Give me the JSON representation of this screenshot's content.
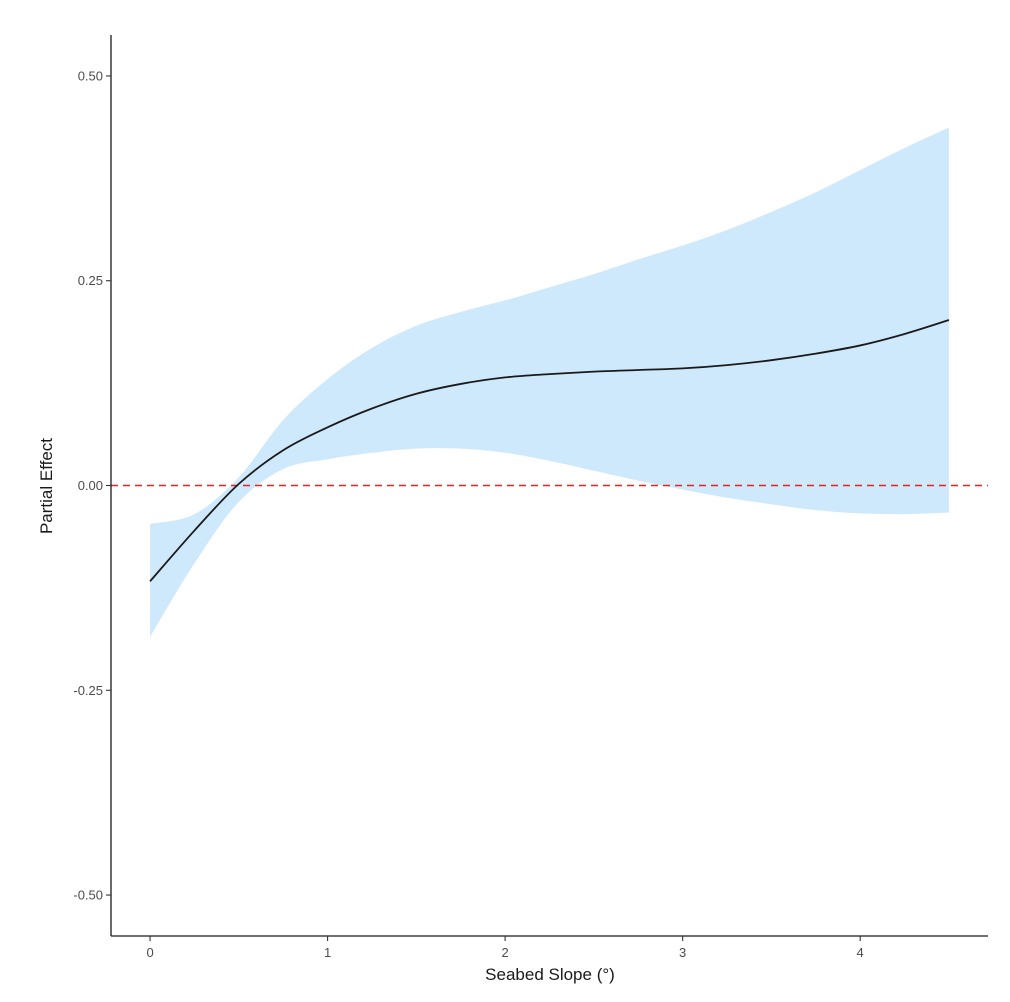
{
  "chart_data": {
    "type": "line",
    "title": "",
    "xlabel": "Seabed Slope (°)",
    "ylabel": "Partial Effect",
    "xlim": [
      -0.22,
      4.72
    ],
    "ylim": [
      -0.55,
      0.55
    ],
    "x_ticks": [
      {
        "value": 0,
        "label": "0"
      },
      {
        "value": 1,
        "label": "1"
      },
      {
        "value": 2,
        "label": "2"
      },
      {
        "value": 3,
        "label": "3"
      },
      {
        "value": 4,
        "label": "4"
      }
    ],
    "y_ticks": [
      {
        "value": 0.5,
        "label": "0.50"
      },
      {
        "value": 0.25,
        "label": "0.25"
      },
      {
        "value": 0.0,
        "label": "0.00"
      },
      {
        "value": -0.25,
        "label": "-0.25"
      },
      {
        "value": -0.5,
        "label": "-0.50"
      }
    ],
    "grid": false,
    "legend": "none",
    "reference_line": {
      "y": 0,
      "color": "#e8231f",
      "style": "dashed"
    },
    "ribbon_color": "#cfe9fc",
    "line_color": "#1a1a1a",
    "x": [
      0,
      0.25,
      0.5,
      0.75,
      1.0,
      1.25,
      1.5,
      1.75,
      2.0,
      2.25,
      2.5,
      2.75,
      3.0,
      3.25,
      3.5,
      3.75,
      4.0,
      4.25,
      4.5
    ],
    "fit": [
      -0.117,
      -0.055,
      0.002,
      0.043,
      0.071,
      0.094,
      0.112,
      0.124,
      0.132,
      0.136,
      0.139,
      0.141,
      0.143,
      0.147,
      0.153,
      0.161,
      0.171,
      0.185,
      0.202
    ],
    "lower": [
      -0.185,
      -0.095,
      -0.02,
      0.02,
      0.032,
      0.04,
      0.045,
      0.045,
      0.04,
      0.03,
      0.018,
      0.006,
      -0.005,
      -0.015,
      -0.023,
      -0.03,
      -0.034,
      -0.035,
      -0.033
    ],
    "upper": [
      -0.047,
      -0.035,
      0.01,
      0.08,
      0.13,
      0.168,
      0.195,
      0.212,
      0.226,
      0.242,
      0.258,
      0.276,
      0.293,
      0.312,
      0.334,
      0.358,
      0.385,
      0.412,
      0.437
    ]
  }
}
